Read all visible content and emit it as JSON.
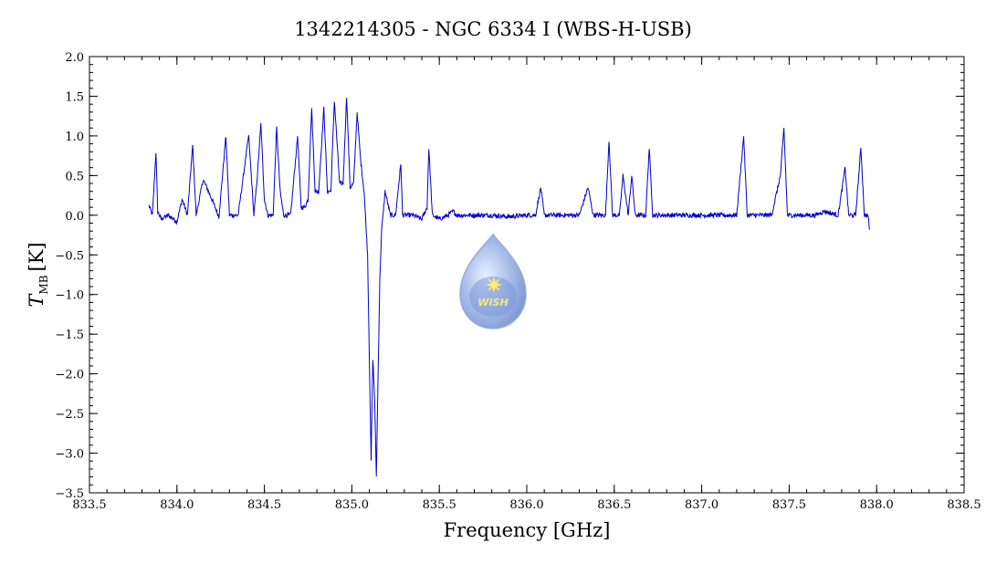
{
  "chart_data": {
    "type": "line",
    "title": "1342214305 - NGC 6334 I (WBS-H-USB)",
    "xlabel": "Frequency [GHz]",
    "ylabel": {
      "symbol": "T",
      "subscript": "MB",
      "unit": "[K]"
    },
    "xlim": [
      833.5,
      838.5
    ],
    "ylim": [
      -3.5,
      2.0
    ],
    "x_ticks": [
      "833.5",
      "834.0",
      "834.5",
      "835.0",
      "835.5",
      "836.0",
      "836.5",
      "837.0",
      "837.5",
      "838.0",
      "838.5"
    ],
    "y_ticks": [
      "-3.5",
      "-3.0",
      "-2.5",
      "-2.0",
      "-1.5",
      "-1.0",
      "-0.5",
      "0.0",
      "0.5",
      "1.0",
      "1.5",
      "2.0"
    ],
    "grid": false,
    "line_color": "#0000cc",
    "series": [
      {
        "x": [
          833.84,
          833.86,
          833.88,
          833.89,
          833.91,
          833.95,
          834.0,
          834.03,
          834.06,
          834.09,
          834.11,
          834.15,
          834.2,
          834.24,
          834.28,
          834.3,
          834.35,
          834.41,
          834.44,
          834.46,
          834.48,
          834.5,
          834.52,
          834.55,
          834.57,
          834.59,
          834.61,
          834.65,
          834.69,
          834.71,
          834.73,
          834.75,
          834.77,
          834.79,
          834.81,
          834.84,
          834.86,
          834.88,
          834.9,
          834.93,
          834.95,
          834.97,
          834.99,
          835.01,
          835.03,
          835.05,
          835.07,
          835.09,
          835.1,
          835.11,
          835.12,
          835.13,
          835.14,
          835.15,
          835.16,
          835.17,
          835.19,
          835.22,
          835.25,
          835.28,
          835.29,
          835.31,
          835.35,
          835.4,
          835.43,
          835.44,
          835.46,
          835.5,
          835.55,
          835.58,
          835.6,
          835.7,
          835.8,
          835.9,
          836.0,
          836.05,
          836.08,
          836.1,
          836.2,
          836.3,
          836.35,
          836.38,
          836.45,
          836.47,
          836.49,
          836.53,
          836.55,
          836.58,
          836.6,
          836.62,
          836.64,
          836.68,
          836.7,
          836.72,
          836.8,
          836.9,
          837.0,
          837.1,
          837.2,
          837.24,
          837.26,
          837.3,
          837.35,
          837.4,
          837.45,
          837.47,
          837.49,
          837.52,
          837.58,
          837.65,
          837.7,
          837.78,
          837.82,
          837.84,
          837.88,
          837.91,
          837.93,
          837.95,
          837.96
        ],
        "y": [
          0.12,
          0.0,
          0.8,
          0.05,
          -0.05,
          0.0,
          -0.08,
          0.2,
          0.0,
          0.88,
          0.0,
          0.45,
          0.2,
          -0.02,
          1.0,
          0.0,
          0.0,
          1.0,
          0.0,
          0.5,
          1.15,
          0.2,
          0.0,
          0.0,
          1.1,
          0.3,
          0.0,
          0.0,
          1.0,
          0.1,
          0.1,
          0.2,
          1.35,
          0.3,
          0.3,
          1.35,
          0.3,
          0.3,
          1.45,
          0.4,
          0.4,
          1.5,
          0.35,
          0.4,
          1.3,
          0.7,
          0.3,
          -0.5,
          -1.8,
          -3.1,
          -1.8,
          -2.3,
          -3.3,
          -2.0,
          -0.8,
          -0.2,
          0.3,
          0.0,
          0.0,
          0.65,
          0.0,
          0.0,
          0.0,
          -0.05,
          0.1,
          0.85,
          0.0,
          -0.05,
          0.0,
          0.05,
          0.0,
          0.0,
          0.0,
          -0.02,
          0.0,
          0.0,
          0.35,
          0.0,
          0.0,
          0.0,
          0.35,
          0.0,
          0.0,
          0.95,
          0.0,
          0.0,
          0.5,
          0.0,
          0.5,
          0.0,
          0.0,
          0.0,
          0.85,
          0.0,
          0.0,
          0.0,
          0.0,
          0.0,
          0.0,
          1.0,
          0.0,
          0.0,
          0.0,
          0.0,
          0.5,
          1.1,
          0.0,
          0.0,
          0.0,
          0.0,
          0.05,
          0.0,
          0.6,
          0.0,
          0.0,
          0.85,
          0.0,
          0.0,
          -0.18
        ]
      }
    ],
    "annotations": [
      {
        "type": "logo",
        "text": "WISH",
        "x": 835.82,
        "y": -1.0
      }
    ]
  }
}
